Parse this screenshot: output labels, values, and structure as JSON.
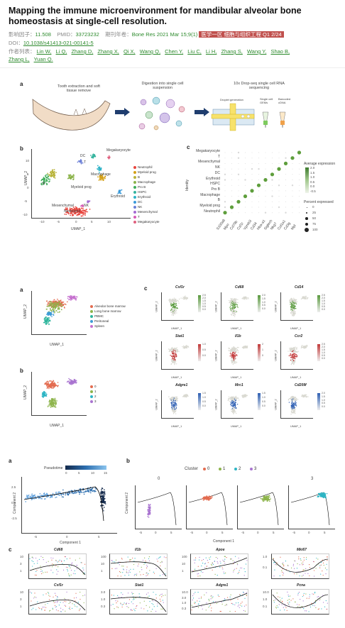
{
  "article": {
    "title": "Mapping the immune microenvironment for mandibular alveolar bone homeostasis at single-cell resolution.",
    "impact_label": "影响因子：",
    "impact_value": "11.508",
    "pmid_label": "PMID：",
    "pmid_value": "33723232",
    "journal_label": "期刊年卷：",
    "journal_value": "Bone Res 2021 Mar 15;9(1)",
    "zone_badge": "医学一区 细胞与组织工程 Q1 2/24",
    "doi_label": "DOI：",
    "doi_value": "10.1038/s41413-021-00141-5",
    "authors_label": "作者列表：",
    "authors": [
      "Lin W,",
      "Li Q,",
      "Zhang D,",
      "Zhang X,",
      "Qi X,",
      "Wang Q,",
      "Chen Y,",
      "Liu C,",
      "Li H,",
      "Zhang S,",
      "Wang Y,",
      "Shao B,",
      "Zhang L,",
      "Yuan Q."
    ]
  },
  "fig1": {
    "letter_a": "a",
    "step1": "Tooth extraction and soft tissue remove",
    "step2": "Digestion into single cell suspension",
    "step3": "10x Drop-seq single cell RNA sequencing",
    "droplet": "Droplet generation",
    "gems": "Single cell GEMs",
    "barcoded": "Barcoded cDNA",
    "letter_b": "b",
    "letter_c": "c",
    "umap_x": "UMAP_1",
    "umap_y": "UMAP_2",
    "cluster_labels": [
      "Megakaryocyte",
      "DC",
      "T",
      "Macrophage",
      "B",
      "Myeloid prog",
      "Erythroid",
      "Mesenchymal",
      "NK",
      "Neutrophil"
    ],
    "x_ticks": [
      "-10",
      "-5",
      "0",
      "5",
      "10"
    ],
    "y_ticks": [
      "10",
      "5",
      "0",
      "-5",
      "-10"
    ],
    "legend": [
      {
        "name": "Neutrophil",
        "color": "#e8463e"
      },
      {
        "name": "Myeloid prog",
        "color": "#d4a017"
      },
      {
        "name": "B",
        "color": "#b8b33a"
      },
      {
        "name": "Macrophage",
        "color": "#8bb34a"
      },
      {
        "name": "Pro B",
        "color": "#3fae5a"
      },
      {
        "name": "HSPC",
        "color": "#33b39d"
      },
      {
        "name": "Erythroid",
        "color": "#2fb3c7"
      },
      {
        "name": "DC",
        "color": "#3a9ad9"
      },
      {
        "name": "NK",
        "color": "#6b7fd6"
      },
      {
        "name": "Mesenchymal",
        "color": "#a46ad3"
      },
      {
        "name": "T",
        "color": "#d65bb6"
      },
      {
        "name": "Megakaryocyte",
        "color": "#e0607e"
      }
    ],
    "dot_rows": [
      "Megakaryocyte",
      "T",
      "Mesenchymal",
      "NK",
      "DC",
      "Erythroid",
      "HSPC",
      "Pro B",
      "Macrophage",
      "B",
      "Myeloid prog",
      "Neutrophil"
    ],
    "dot_cols": [
      "S100a8",
      "Mpo",
      "Cd79b",
      "Csf1r",
      "Vpreb3",
      "Cd34",
      "Hba-a1",
      "Siglech",
      "Nkg7",
      "Col1a1",
      "Cd3g",
      "Mpl"
    ],
    "identity": "Identity",
    "avg_expr": "Average expression",
    "avg_ticks": [
      "2.0",
      "1.5",
      "1.0",
      "0.5",
      "0.0",
      "-0.5"
    ],
    "pct_expr": "Percent expressed",
    "pct_ticks": [
      "0",
      "25",
      "50",
      "75",
      "100"
    ]
  },
  "fig2": {
    "letter_a": "a",
    "letter_b": "b",
    "letter_c": "c",
    "umap_x": "UMAP_1",
    "umap_y": "UMAP_2",
    "tissue_legend": [
      {
        "name": "Alveolar bone marrow",
        "color": "#e36b4f"
      },
      {
        "name": "Long bone marrow",
        "color": "#8db44b"
      },
      {
        "name": "PBMC",
        "color": "#2db59c"
      },
      {
        "name": "Peritoneal",
        "color": "#3e9bd6"
      },
      {
        "name": "Spleen",
        "color": "#c56fce"
      }
    ],
    "cluster_legend": [
      {
        "name": "0",
        "color": "#e36b4f"
      },
      {
        "name": "1",
        "color": "#8db44b"
      },
      {
        "name": "2",
        "color": "#2db5c4"
      },
      {
        "name": "3",
        "color": "#a974d0"
      }
    ],
    "ticks_x": [
      "-5",
      "0",
      "5",
      "10"
    ],
    "ticks_y": [
      "5",
      "0",
      "-5"
    ],
    "feature_genes": [
      "Csf1r",
      "Cd68",
      "Cd14",
      "Stat1",
      "Il1b",
      "Ccr2",
      "Adgre1",
      "Mrc1",
      "Cd209f"
    ],
    "feature_colors": [
      "#5a9a3e",
      "#5a9a3e",
      "#5a9a3e",
      "#c23a3a",
      "#c23a3a",
      "#c23a3a",
      "#2e5fb3",
      "#2e5fb3",
      "#2e5fb3"
    ],
    "feature_scales": [
      [
        "2.5",
        "2.0",
        "1.5",
        "1.0",
        "0.5",
        "0.0"
      ],
      [
        "2.0",
        "1.5",
        "1.0",
        "0.5",
        "0.0"
      ],
      [
        "2.5",
        "2.0",
        "1.5",
        "1.0",
        "0.5",
        "0.0"
      ],
      [
        "1.0",
        "0.5",
        "0.0"
      ],
      [
        "2",
        "1",
        "0"
      ],
      [
        "2.5",
        "2.0",
        "1.5",
        "1.0",
        "0.5",
        "0.0"
      ],
      [
        "1.5",
        "1.0",
        "0.5",
        "0.0"
      ],
      [
        "1.5",
        "1.0",
        "0.5",
        "0.0"
      ],
      [
        "2.0",
        "1.5",
        "1.0",
        "0.5",
        "0.0"
      ]
    ]
  },
  "fig3": {
    "letter_a": "a",
    "letter_b": "b",
    "letter_c": "c",
    "pseudotime": "Pseudotime",
    "pseudotime_ticks": [
      "0",
      "5",
      "10",
      "15"
    ],
    "component1": "Component 1",
    "component2": "Component 2",
    "a_xticks": [
      "-5",
      "0",
      "5"
    ],
    "a_yticks": [
      "2.5",
      "0.0",
      "-2.5"
    ],
    "cluster_title": "Cluster",
    "cluster_items": [
      {
        "name": "0",
        "color": "#e36b4f"
      },
      {
        "name": "1",
        "color": "#8db44b"
      },
      {
        "name": "2",
        "color": "#2db5c4"
      },
      {
        "name": "3",
        "color": "#a974d0"
      }
    ],
    "facet_labels": [
      "0",
      "",
      "",
      "3"
    ],
    "facet_colors": [
      "#a974d0",
      "#e36b4f",
      "#8db44b",
      "#2db5c4"
    ],
    "b_xticks": [
      "-5",
      "0",
      "5"
    ],
    "genes": [
      {
        "name": "Cd68",
        "y": [
          "10",
          "3",
          "1"
        ]
      },
      {
        "name": "Il1b",
        "y": [
          "100",
          "10",
          "1"
        ]
      },
      {
        "name": "Apoe",
        "y": [
          "100",
          "10",
          "1"
        ]
      },
      {
        "name": "Mki67",
        "y": [
          "1.0",
          "0.1"
        ]
      },
      {
        "name": "Csf1r",
        "y": [
          "10",
          "3",
          "1"
        ]
      },
      {
        "name": "Stat1",
        "y": [
          "3.0",
          "1.0",
          "0.3"
        ]
      },
      {
        "name": "Adgre1",
        "y": [
          "10.0",
          "3.0",
          "1.0",
          "0.3"
        ]
      },
      {
        "name": "Pcna",
        "y": [
          "10.0",
          "1.0",
          "0.1"
        ]
      }
    ]
  }
}
